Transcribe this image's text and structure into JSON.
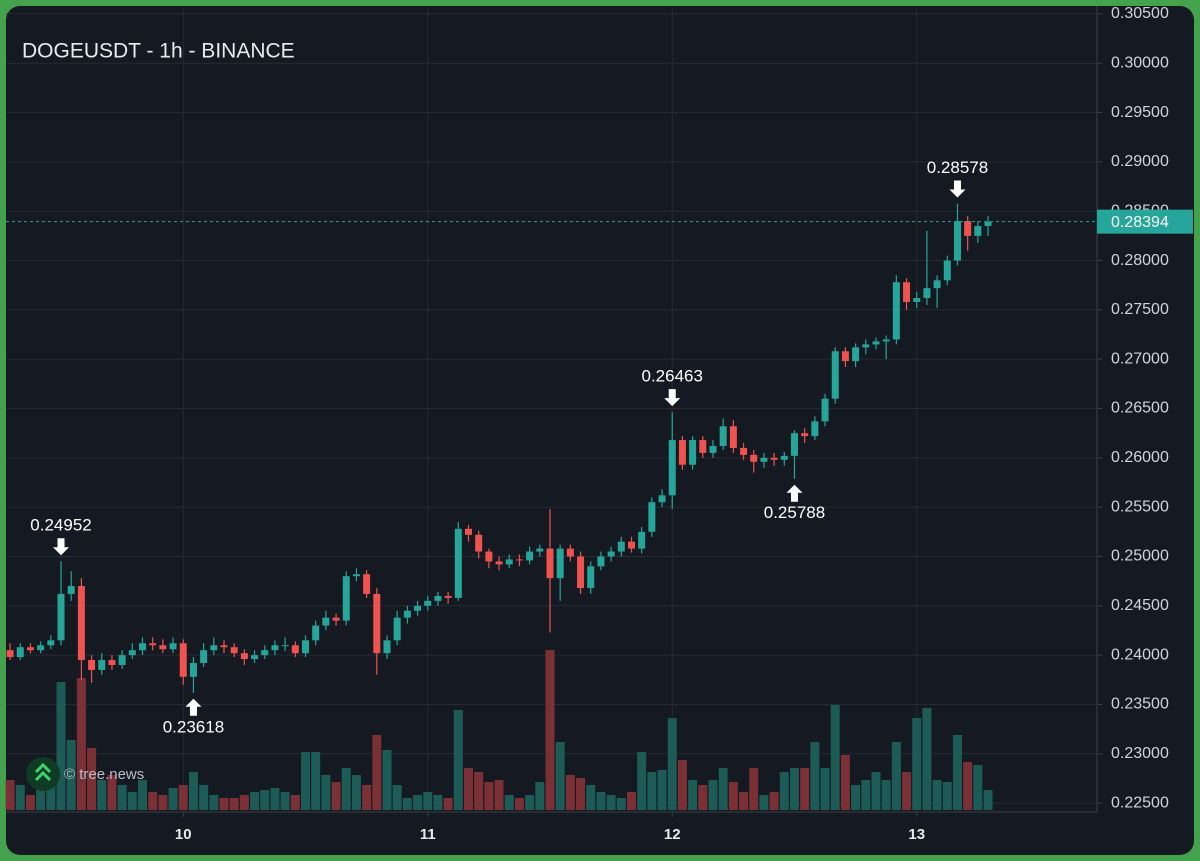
{
  "chart_data": {
    "type": "candlestick",
    "title": "DOGEUSDT - 1h - BINANCE",
    "watermark": "© tree.news",
    "x": [
      7,
      8,
      9,
      10,
      11,
      12,
      13,
      14,
      15,
      16,
      17,
      18,
      19,
      20,
      21,
      22,
      23,
      24,
      25,
      26,
      27,
      28,
      29,
      30,
      31,
      32,
      33,
      34,
      35,
      36,
      37,
      38,
      39,
      40,
      41,
      42,
      43,
      44,
      45,
      46,
      47,
      48,
      49,
      50,
      51,
      52,
      53,
      54,
      55,
      56,
      57,
      58,
      59,
      60,
      61,
      62,
      63,
      64,
      65,
      66,
      67,
      68,
      69,
      70,
      71,
      72,
      73,
      74,
      75,
      76,
      77,
      78,
      79,
      80,
      81,
      82,
      83,
      84,
      85,
      86,
      87,
      88,
      89,
      90,
      91,
      92,
      93,
      94,
      95,
      96,
      97,
      98,
      99,
      100,
      101,
      102,
      103
    ],
    "open": [
      0.2405,
      0.2398,
      0.2408,
      0.2405,
      0.241,
      0.2415,
      0.2462,
      0.247,
      0.2395,
      0.2385,
      0.2395,
      0.239,
      0.24,
      0.2405,
      0.2412,
      0.241,
      0.2406,
      0.2412,
      0.2378,
      0.2392,
      0.2405,
      0.241,
      0.2408,
      0.2402,
      0.2396,
      0.24,
      0.2405,
      0.241,
      0.241,
      0.2402,
      0.2415,
      0.243,
      0.2438,
      0.2435,
      0.248,
      0.2482,
      0.2462,
      0.2402,
      0.2415,
      0.2438,
      0.2445,
      0.245,
      0.2455,
      0.246,
      0.2458,
      0.2528,
      0.2522,
      0.2505,
      0.2495,
      0.2492,
      0.2497,
      0.2496,
      0.2505,
      0.2508,
      0.2478,
      0.2508,
      0.25,
      0.2468,
      0.249,
      0.25,
      0.2505,
      0.2515,
      0.2508,
      0.2525,
      0.2555,
      0.2562,
      0.2618,
      0.2593,
      0.2618,
      0.2605,
      0.2612,
      0.2632,
      0.261,
      0.2603,
      0.2596,
      0.26,
      0.2598,
      0.2602,
      0.2625,
      0.2622,
      0.2637,
      0.266,
      0.2708,
      0.2698,
      0.2712,
      0.2715,
      0.2718,
      0.272,
      0.2778,
      0.2758,
      0.2762,
      0.2772,
      0.278,
      0.28,
      0.284,
      0.2825,
      0.2835
    ],
    "high": [
      0.2412,
      0.2412,
      0.2412,
      0.2414,
      0.242,
      0.24952,
      0.2485,
      0.2478,
      0.24,
      0.2402,
      0.24,
      0.2405,
      0.2412,
      0.2418,
      0.2418,
      0.2416,
      0.2418,
      0.2416,
      0.2398,
      0.2412,
      0.2418,
      0.2415,
      0.2412,
      0.2406,
      0.2405,
      0.241,
      0.2415,
      0.2418,
      0.2414,
      0.242,
      0.2435,
      0.2445,
      0.2442,
      0.2485,
      0.2488,
      0.2486,
      0.2468,
      0.242,
      0.2445,
      0.245,
      0.2455,
      0.246,
      0.2464,
      0.2464,
      0.2535,
      0.2532,
      0.2526,
      0.2508,
      0.25,
      0.2502,
      0.2502,
      0.251,
      0.2512,
      0.2548,
      0.2512,
      0.2512,
      0.2505,
      0.2495,
      0.2505,
      0.251,
      0.252,
      0.252,
      0.253,
      0.256,
      0.2568,
      0.26463,
      0.2622,
      0.2622,
      0.2622,
      0.2618,
      0.264,
      0.2638,
      0.2615,
      0.2608,
      0.2605,
      0.2605,
      0.2606,
      0.2628,
      0.263,
      0.2642,
      0.2665,
      0.2712,
      0.2712,
      0.2716,
      0.272,
      0.2722,
      0.2724,
      0.2785,
      0.2782,
      0.2768,
      0.283,
      0.2785,
      0.2805,
      0.28578,
      0.2845,
      0.284,
      0.2845
    ],
    "low": [
      0.2395,
      0.2395,
      0.2402,
      0.2402,
      0.2406,
      0.241,
      0.2455,
      0.2375,
      0.2372,
      0.238,
      0.2385,
      0.2386,
      0.2396,
      0.24,
      0.2405,
      0.2402,
      0.2402,
      0.237,
      0.23618,
      0.2388,
      0.24,
      0.2402,
      0.2398,
      0.239,
      0.2392,
      0.2396,
      0.24,
      0.2404,
      0.2398,
      0.2398,
      0.241,
      0.2425,
      0.243,
      0.243,
      0.2475,
      0.2458,
      0.238,
      0.2396,
      0.241,
      0.2432,
      0.244,
      0.2445,
      0.245,
      0.2452,
      0.2455,
      0.2515,
      0.2498,
      0.2488,
      0.2486,
      0.2488,
      0.249,
      0.2492,
      0.25,
      0.2423,
      0.2455,
      0.2495,
      0.2462,
      0.2462,
      0.2486,
      0.2495,
      0.25,
      0.2504,
      0.2503,
      0.252,
      0.255,
      0.2548,
      0.2588,
      0.2588,
      0.26,
      0.26,
      0.2608,
      0.2605,
      0.2598,
      0.2585,
      0.259,
      0.2592,
      0.2592,
      0.25788,
      0.2615,
      0.2618,
      0.2632,
      0.2655,
      0.2692,
      0.2692,
      0.2705,
      0.271,
      0.27,
      0.2715,
      0.275,
      0.2752,
      0.2755,
      0.2752,
      0.2775,
      0.2795,
      0.281,
      0.2818,
      0.2825
    ],
    "close": [
      0.2398,
      0.2408,
      0.2405,
      0.241,
      0.2415,
      0.2462,
      0.247,
      0.2395,
      0.2385,
      0.2395,
      0.239,
      0.24,
      0.2405,
      0.2412,
      0.241,
      0.2406,
      0.2412,
      0.2378,
      0.2392,
      0.2405,
      0.241,
      0.2408,
      0.2402,
      0.2396,
      0.24,
      0.2405,
      0.241,
      0.241,
      0.2402,
      0.2415,
      0.243,
      0.2438,
      0.2435,
      0.248,
      0.2482,
      0.2462,
      0.2402,
      0.2415,
      0.2438,
      0.2445,
      0.245,
      0.2455,
      0.246,
      0.2458,
      0.2528,
      0.2522,
      0.2505,
      0.2495,
      0.2492,
      0.2497,
      0.2496,
      0.2505,
      0.2508,
      0.2478,
      0.2508,
      0.25,
      0.2468,
      0.249,
      0.25,
      0.2505,
      0.2515,
      0.2508,
      0.2525,
      0.2555,
      0.2562,
      0.2618,
      0.2593,
      0.2618,
      0.2605,
      0.2612,
      0.2632,
      0.261,
      0.2603,
      0.2596,
      0.26,
      0.2598,
      0.2602,
      0.2625,
      0.2622,
      0.2637,
      0.266,
      0.2708,
      0.2698,
      0.2712,
      0.2715,
      0.2718,
      0.272,
      0.2778,
      0.2758,
      0.2762,
      0.2772,
      0.278,
      0.28,
      0.284,
      0.2825,
      0.2835,
      0.28394
    ],
    "volume": [
      30,
      25,
      15,
      20,
      35,
      128,
      70,
      132,
      62,
      30,
      35,
      25,
      18,
      30,
      18,
      15,
      22,
      25,
      38,
      25,
      15,
      12,
      12,
      15,
      18,
      20,
      22,
      18,
      15,
      58,
      58,
      35,
      28,
      42,
      35,
      25,
      75,
      60,
      25,
      12,
      15,
      18,
      15,
      12,
      100,
      42,
      38,
      28,
      30,
      15,
      12,
      15,
      28,
      160,
      68,
      35,
      32,
      25,
      18,
      15,
      12,
      18,
      58,
      38,
      40,
      92,
      50,
      30,
      25,
      30,
      42,
      28,
      18,
      42,
      15,
      18,
      38,
      42,
      42,
      68,
      42,
      105,
      55,
      25,
      30,
      38,
      30,
      68,
      38,
      92,
      102,
      30,
      28,
      75,
      48,
      45,
      20
    ],
    "colors": {
      "up": "#26a69a",
      "down": "#ef5350"
    },
    "volume_colors": {
      "up": "#1d5b57",
      "down": "#7a3035"
    },
    "xlim": [
      6.6,
      113.5
    ],
    "xticks": [
      {
        "value": 24,
        "label": "10"
      },
      {
        "value": 48,
        "label": "11"
      },
      {
        "value": 72,
        "label": "12"
      },
      {
        "value": 96,
        "label": "13"
      }
    ],
    "ylim": [
      0.2243,
      0.3056
    ],
    "yticks": [
      {
        "value": 0.225,
        "label": "0.22500"
      },
      {
        "value": 0.23,
        "label": "0.23000"
      },
      {
        "value": 0.235,
        "label": "0.23500"
      },
      {
        "value": 0.24,
        "label": "0.24000"
      },
      {
        "value": 0.245,
        "label": "0.24500"
      },
      {
        "value": 0.25,
        "label": "0.25000"
      },
      {
        "value": 0.255,
        "label": "0.25500"
      },
      {
        "value": 0.26,
        "label": "0.26000"
      },
      {
        "value": 0.265,
        "label": "0.26500"
      },
      {
        "value": 0.27,
        "label": "0.27000"
      },
      {
        "value": 0.275,
        "label": "0.27500"
      },
      {
        "value": 0.28,
        "label": "0.28000"
      },
      {
        "value": 0.285,
        "label": "0.28500"
      },
      {
        "value": 0.29,
        "label": "0.29000"
      },
      {
        "value": 0.295,
        "label": "0.29500"
      },
      {
        "value": 0.3,
        "label": "0.30000"
      },
      {
        "value": 0.305,
        "label": "0.30500"
      }
    ],
    "grid": true,
    "last_price": {
      "value": 0.28394,
      "label": "0.28394"
    },
    "annotations": [
      {
        "x": 12,
        "value": 0.24952,
        "label": "0.24952",
        "position": "above"
      },
      {
        "x": 25,
        "value": 0.23618,
        "label": "0.23618",
        "position": "below"
      },
      {
        "x": 72,
        "value": 0.26463,
        "label": "0.26463",
        "position": "above"
      },
      {
        "x": 84,
        "value": 0.25788,
        "label": "0.25788",
        "position": "below"
      },
      {
        "x": 100,
        "value": 0.28578,
        "label": "0.28578",
        "position": "above"
      }
    ]
  }
}
